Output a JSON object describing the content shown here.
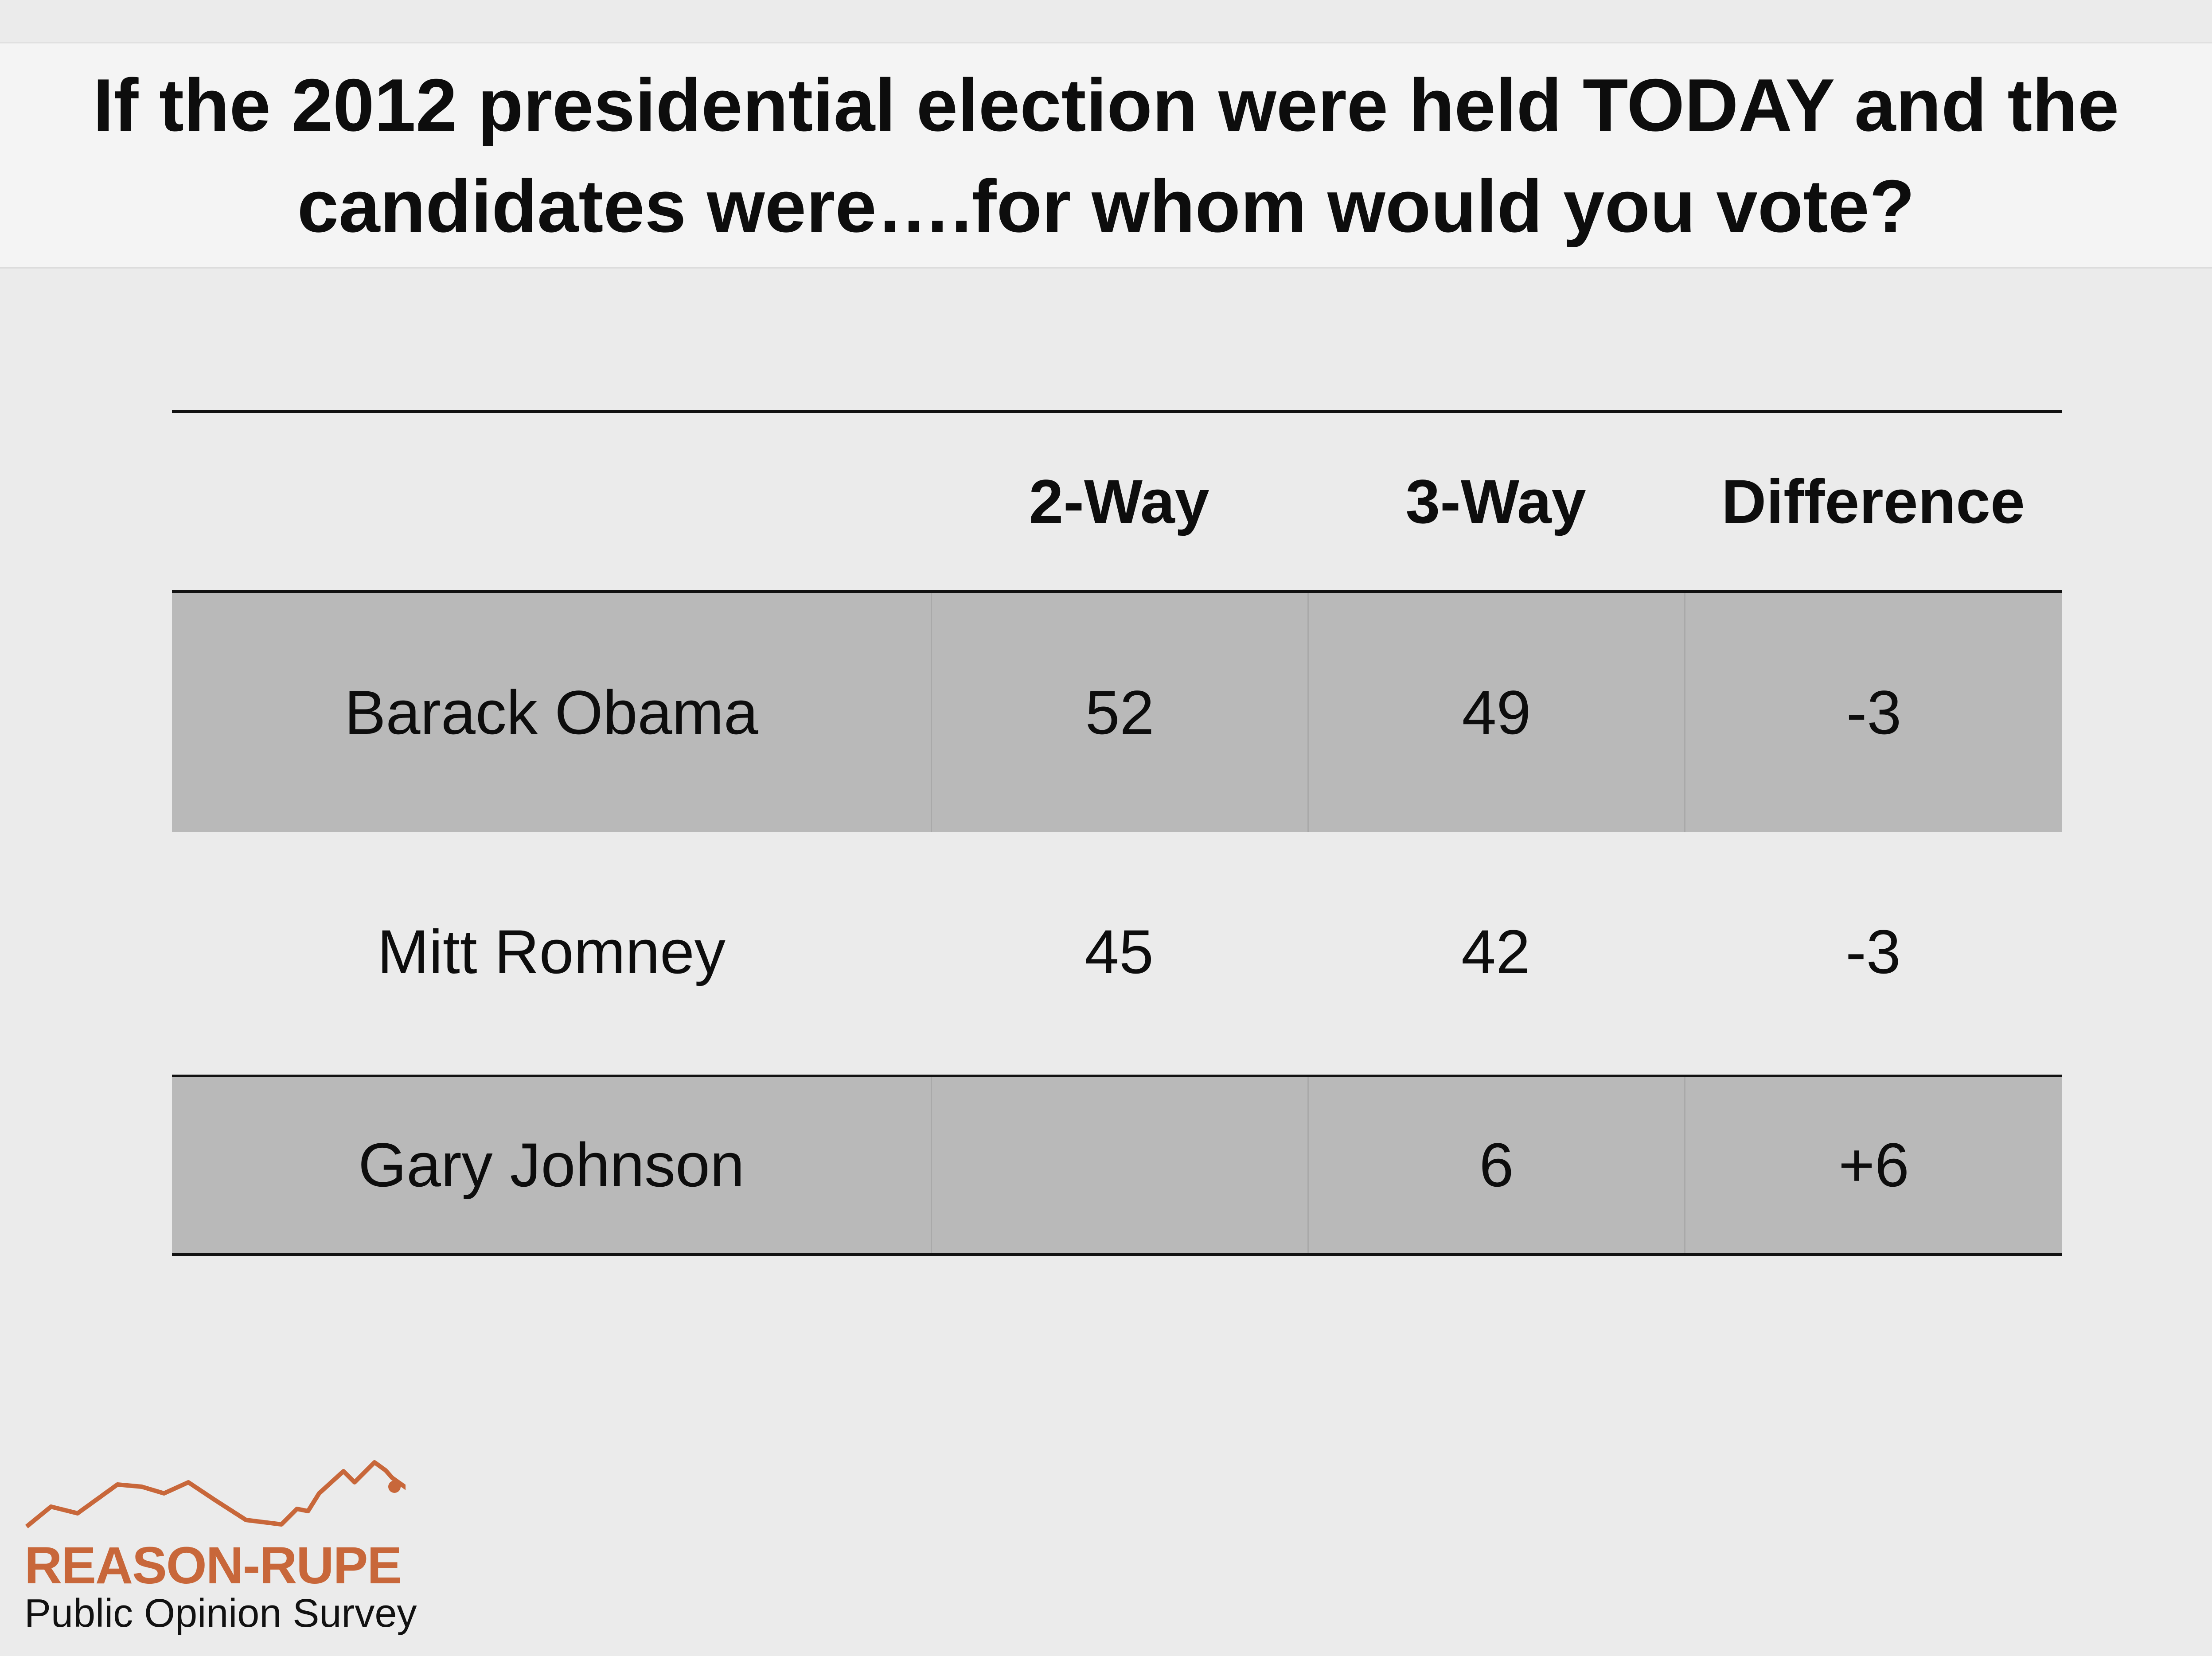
{
  "chart_data": {
    "type": "table",
    "title": "If the 2012 presidential election were held TODAY and the candidates were….for whom would you vote?",
    "columns": [
      "",
      "2-Way",
      "3-Way",
      "Difference"
    ],
    "rows": [
      {
        "candidate": "Barack Obama",
        "two_way": "52",
        "three_way": "49",
        "difference": "-3"
      },
      {
        "candidate": "Mitt Romney",
        "two_way": "45",
        "three_way": "42",
        "difference": "-3"
      },
      {
        "candidate": "Gary Johnson",
        "two_way": "",
        "three_way": "6",
        "difference": "+6"
      }
    ]
  },
  "branding": {
    "name": "REASON-RUPE",
    "subtitle": "Public Opinion Survey",
    "accent_color": "#c8673a"
  }
}
